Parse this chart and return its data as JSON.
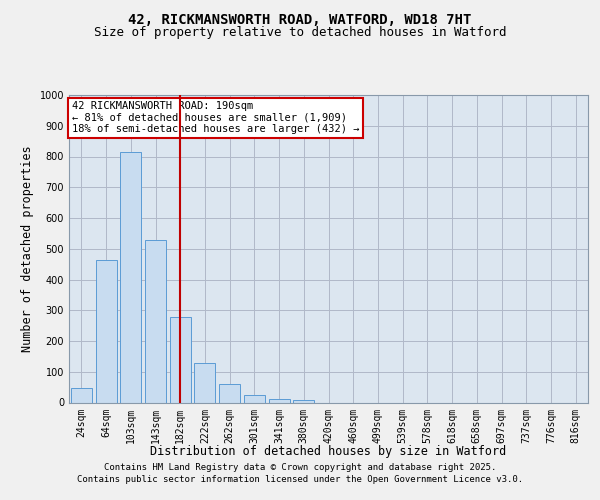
{
  "title_line1": "42, RICKMANSWORTH ROAD, WATFORD, WD18 7HT",
  "title_line2": "Size of property relative to detached houses in Watford",
  "xlabel": "Distribution of detached houses by size in Watford",
  "ylabel": "Number of detached properties",
  "categories": [
    "24sqm",
    "64sqm",
    "103sqm",
    "143sqm",
    "182sqm",
    "222sqm",
    "262sqm",
    "301sqm",
    "341sqm",
    "380sqm",
    "420sqm",
    "460sqm",
    "499sqm",
    "539sqm",
    "578sqm",
    "618sqm",
    "658sqm",
    "697sqm",
    "737sqm",
    "776sqm",
    "816sqm"
  ],
  "values": [
    48,
    462,
    815,
    527,
    278,
    127,
    60,
    25,
    10,
    8,
    0,
    0,
    0,
    0,
    0,
    0,
    0,
    0,
    0,
    0,
    0
  ],
  "bar_color": "#c8dcf0",
  "bar_edge_color": "#5b9bd5",
  "property_line_index": 4,
  "annotation_text": "42 RICKMANSWORTH ROAD: 190sqm\n← 81% of detached houses are smaller (1,909)\n18% of semi-detached houses are larger (432) →",
  "annotation_box_color": "#ffffff",
  "annotation_box_edge": "#cc0000",
  "line_color": "#c00000",
  "ylim": [
    0,
    1000
  ],
  "yticks": [
    0,
    100,
    200,
    300,
    400,
    500,
    600,
    700,
    800,
    900,
    1000
  ],
  "bg_color": "#f0f0f0",
  "plot_bg_color": "#dce6f0",
  "grid_color": "#b0b8c8",
  "footer_line1": "Contains HM Land Registry data © Crown copyright and database right 2025.",
  "footer_line2": "Contains public sector information licensed under the Open Government Licence v3.0.",
  "title_fontsize": 10,
  "subtitle_fontsize": 9,
  "axis_label_fontsize": 8.5,
  "tick_fontsize": 7,
  "annotation_fontsize": 7.5,
  "footer_fontsize": 6.5
}
